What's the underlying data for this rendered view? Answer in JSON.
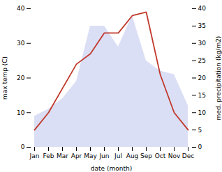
{
  "chart_data": {
    "type": "line",
    "categories": [
      "Jan",
      "Feb",
      "Mar",
      "Apr",
      "May",
      "Jun",
      "Jul",
      "Aug",
      "Sep",
      "Oct",
      "Nov",
      "Dec"
    ],
    "xlabel": "date (month)",
    "ylabel": "max temp (C)",
    "y2label": "med. precipitation (kg/m2)",
    "series": [
      {
        "type": "area",
        "axis": "y2",
        "color": "#b0b8e8",
        "values": [
          9,
          11,
          14,
          19,
          35,
          35,
          29,
          38,
          25,
          22,
          21,
          12
        ]
      },
      {
        "type": "line",
        "color": "#c0392b",
        "values": [
          5,
          10,
          17,
          24,
          27,
          33,
          33,
          38,
          39,
          21,
          10,
          5
        ]
      }
    ],
    "ylim": [
      0,
      40
    ],
    "yticks": [
      0,
      10,
      20,
      30,
      40
    ],
    "y2lim": [
      0,
      40
    ],
    "y2ticks": [
      0,
      5,
      10,
      15,
      20,
      25,
      30,
      35,
      40
    ],
    "grid": false
  }
}
